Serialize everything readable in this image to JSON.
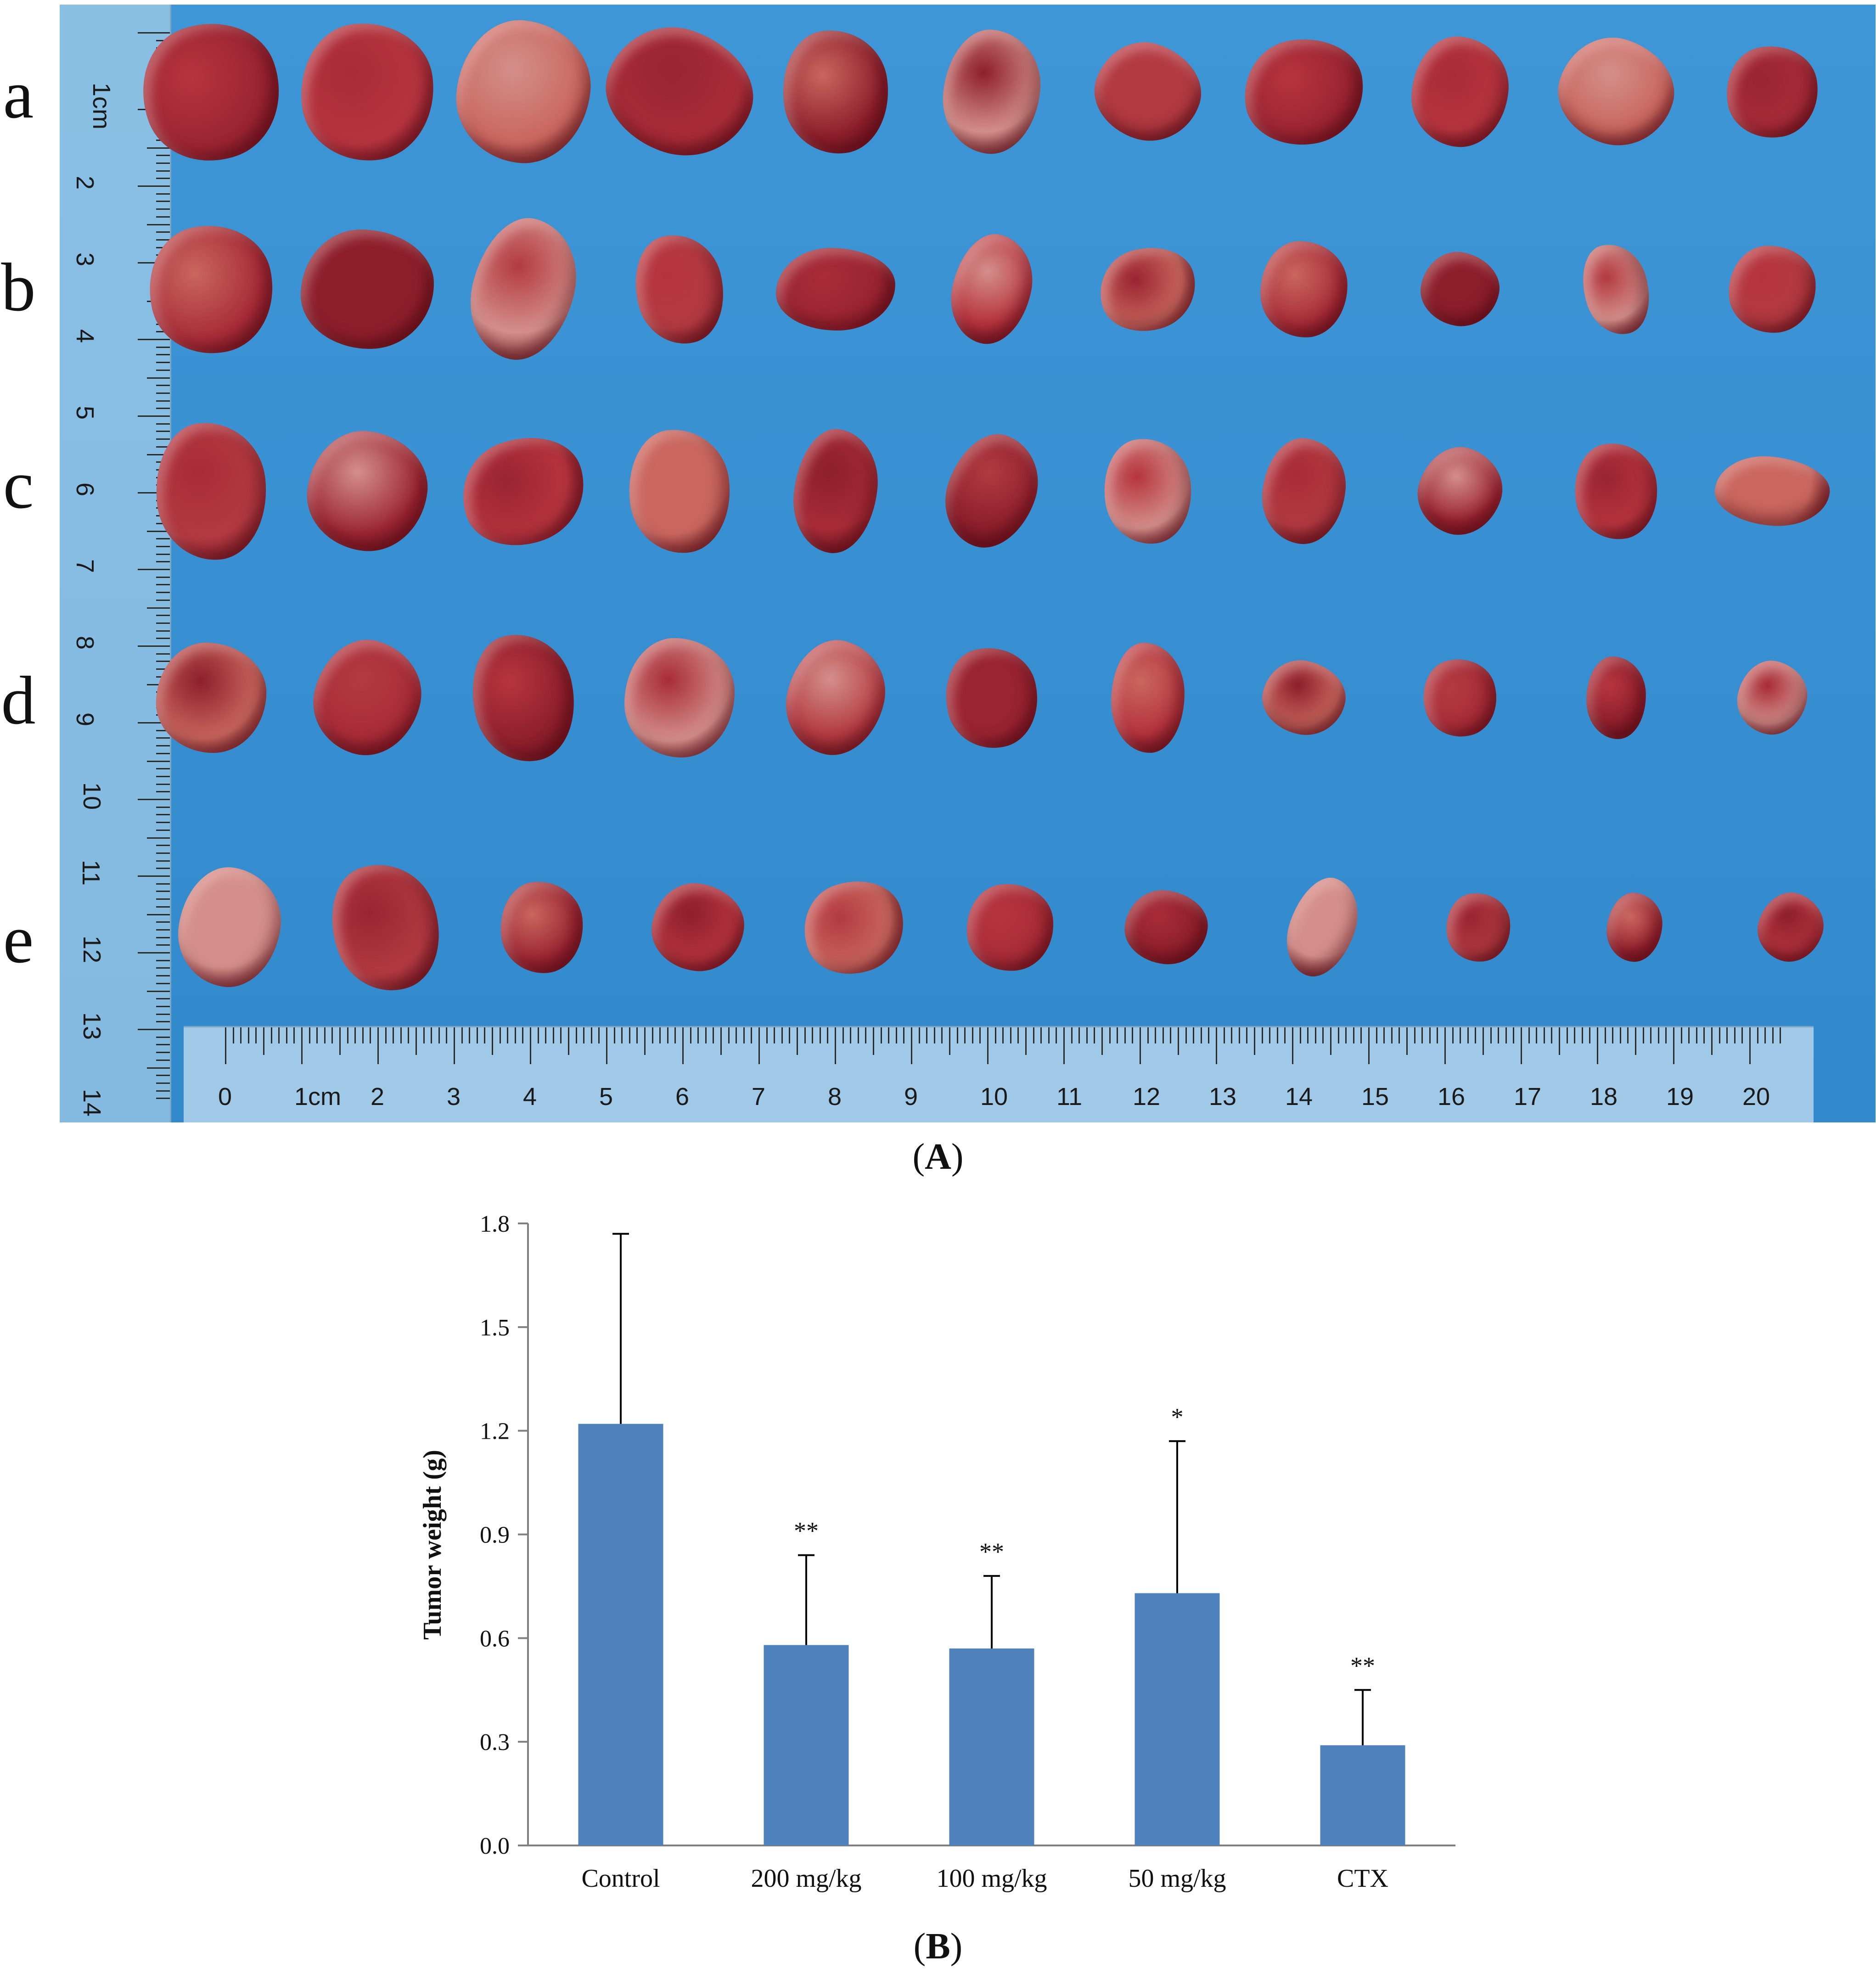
{
  "panel_a": {
    "label_open": "(",
    "label_letter": "A",
    "label_close": ")",
    "row_labels": [
      "a",
      "b",
      "c",
      "d",
      "e"
    ],
    "ruler_vertical_labels": [
      "1cm",
      "2",
      "3",
      "4",
      "5",
      "6",
      "7",
      "8",
      "9",
      "10",
      "11",
      "12",
      "13",
      "14"
    ],
    "ruler_horizontal_labels": [
      "0",
      "1cm",
      "2",
      "3",
      "4",
      "5",
      "6",
      "7",
      "8",
      "9",
      "10",
      "11",
      "12",
      "13",
      "14",
      "15",
      "16",
      "17",
      "18",
      "19",
      "20"
    ],
    "colors": {
      "background": "#3a92d4",
      "tumor_dark": "#8e1e2a",
      "tumor_red": "#b8333f",
      "tumor_pale": "#d99a94"
    }
  },
  "panel_b": {
    "label_open": "(",
    "label_letter": "B",
    "label_close": ")"
  },
  "chart_data": {
    "type": "bar",
    "title": "",
    "xlabel": "",
    "ylabel": "Tumor weight (g)",
    "ylim": [
      0,
      1.8
    ],
    "y_ticks": [
      "0.0",
      "0.3",
      "0.6",
      "0.9",
      "1.2",
      "1.5",
      "1.8"
    ],
    "categories": [
      "Control",
      "200 mg/kg",
      "100 mg/kg",
      "50 mg/kg",
      "CTX"
    ],
    "values": [
      1.22,
      0.58,
      0.57,
      0.73,
      0.29
    ],
    "errors": [
      0.55,
      0.26,
      0.21,
      0.44,
      0.16
    ],
    "significance": [
      "",
      "**",
      "**",
      "*",
      "**"
    ],
    "bar_color": "#4f81bd",
    "grid": false
  }
}
